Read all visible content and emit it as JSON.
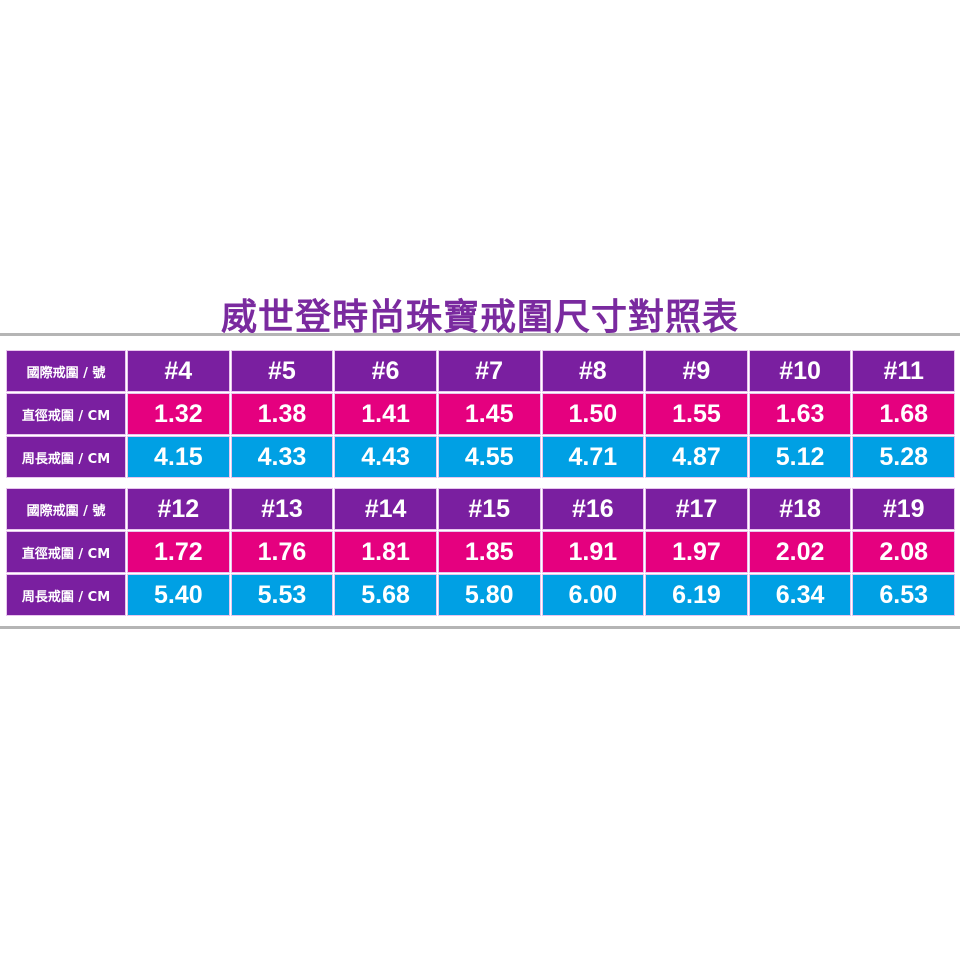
{
  "title": "威世登時尚珠寶戒圍尺寸對照表",
  "labels": {
    "size": "國際戒圍 / 號",
    "diameter": "直徑戒圍 / CM",
    "circumference": "周長戒圍 / CM"
  },
  "colors": {
    "title": "#7a2a9f",
    "size_row": "#7a1fa0",
    "diameter_row": "#e5007f",
    "circumference_row": "#00a0e4"
  },
  "blocks": [
    {
      "sizes": [
        "#4",
        "#5",
        "#6",
        "#7",
        "#8",
        "#9",
        "#10",
        "#11"
      ],
      "diameter": [
        "1.32",
        "1.38",
        "1.41",
        "1.45",
        "1.50",
        "1.55",
        "1.63",
        "1.68"
      ],
      "circumference": [
        "4.15",
        "4.33",
        "4.43",
        "4.55",
        "4.71",
        "4.87",
        "5.12",
        "5.28"
      ]
    },
    {
      "sizes": [
        "#12",
        "#13",
        "#14",
        "#15",
        "#16",
        "#17",
        "#18",
        "#19"
      ],
      "diameter": [
        "1.72",
        "1.76",
        "1.81",
        "1.85",
        "1.91",
        "1.97",
        "2.02",
        "2.08"
      ],
      "circumference": [
        "5.40",
        "5.53",
        "5.68",
        "5.80",
        "6.00",
        "6.19",
        "6.34",
        "6.53"
      ]
    }
  ]
}
